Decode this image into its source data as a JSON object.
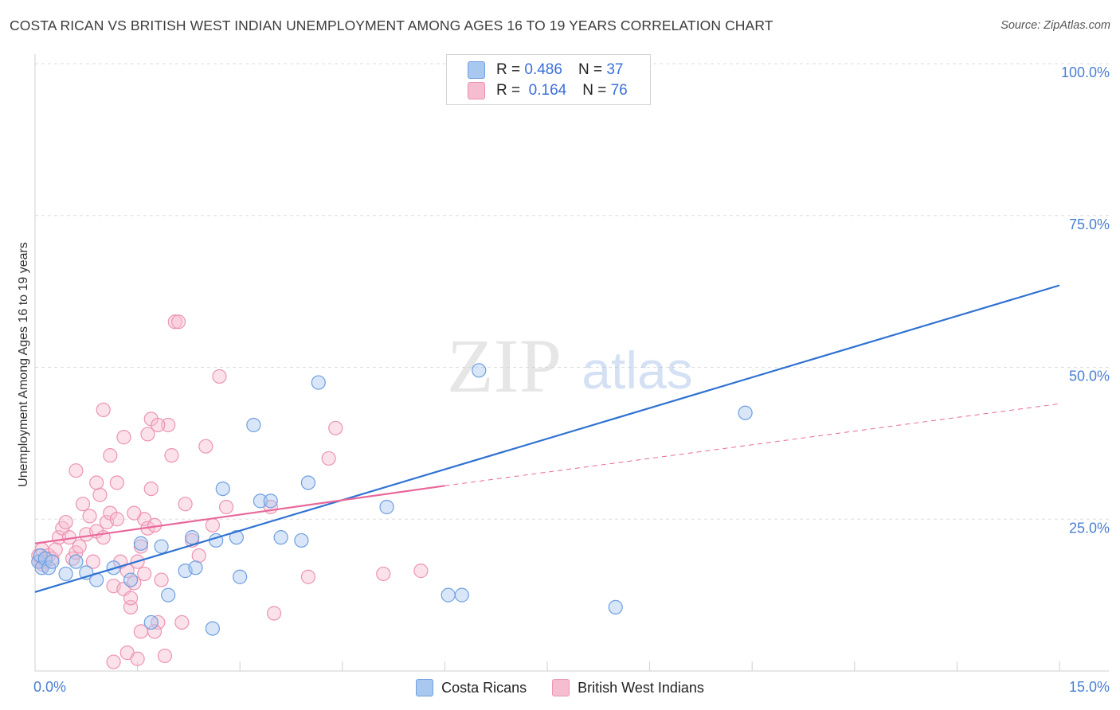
{
  "title": "COSTA RICAN VS BRITISH WEST INDIAN UNEMPLOYMENT AMONG AGES 16 TO 19 YEARS CORRELATION CHART",
  "source": "Source: ZipAtlas.com",
  "watermark": {
    "zip": "ZIP",
    "atlas": "atlas"
  },
  "legend_top": [
    {
      "r_label": "R =",
      "r_value": "0.486",
      "n_label": "N =",
      "n_value": "37"
    },
    {
      "r_label": "R =",
      "r_value": "0.164",
      "n_label": "N =",
      "n_value": "76"
    }
  ],
  "legend_bottom": [
    "Costa Ricans",
    "British West Indians"
  ],
  "colors": {
    "blue_fill": "#a9c8f0",
    "blue_stroke": "#6f9fe0",
    "blue_line": "#2f72d2",
    "pink_fill": "#f6bcd0",
    "pink_stroke": "#ec94b2",
    "pink_line": "#e8689a",
    "grid": "#dddddd",
    "tick_label": "#4a7fd0"
  },
  "chart_data": {
    "type": "scatter",
    "title": "COSTA RICAN VS BRITISH WEST INDIAN UNEMPLOYMENT AMONG AGES 16 TO 19 YEARS CORRELATION CHART",
    "xlabel": "",
    "ylabel": "Unemployment Among Ages 16 to 19 years",
    "xlim": [
      0,
      15
    ],
    "ylim": [
      0,
      100
    ],
    "x_tick_labels": [
      "0.0%",
      "15.0%"
    ],
    "y_ticks": [
      25,
      50,
      75,
      100
    ],
    "y_tick_labels": [
      "25.0%",
      "50.0%",
      "75.0%",
      "100.0%"
    ],
    "grid": true,
    "legend_position": "top-center",
    "series": [
      {
        "name": "Costa Ricans",
        "r": 0.486,
        "n": 37,
        "trend": {
          "x": [
            0,
            15
          ],
          "y": [
            13,
            63.5
          ],
          "style": "solid"
        },
        "points": [
          [
            0.05,
            18
          ],
          [
            0.08,
            19
          ],
          [
            0.1,
            17
          ],
          [
            0.15,
            18.5
          ],
          [
            0.2,
            17
          ],
          [
            0.25,
            18
          ],
          [
            0.45,
            16
          ],
          [
            0.6,
            18
          ],
          [
            0.75,
            16.2
          ],
          [
            0.9,
            15
          ],
          [
            1.15,
            17
          ],
          [
            1.4,
            15
          ],
          [
            1.55,
            21
          ],
          [
            1.7,
            8
          ],
          [
            1.85,
            20.5
          ],
          [
            1.95,
            12.5
          ],
          [
            2.2,
            16.5
          ],
          [
            2.3,
            22
          ],
          [
            2.35,
            17
          ],
          [
            2.6,
            7
          ],
          [
            2.65,
            21.5
          ],
          [
            2.75,
            30
          ],
          [
            2.95,
            22
          ],
          [
            3.0,
            15.5
          ],
          [
            3.2,
            40.5
          ],
          [
            3.3,
            28
          ],
          [
            3.45,
            28
          ],
          [
            3.6,
            22
          ],
          [
            3.9,
            21.5
          ],
          [
            4.0,
            31
          ],
          [
            4.15,
            47.5
          ],
          [
            5.15,
            27
          ],
          [
            6.05,
            12.5
          ],
          [
            6.25,
            12.5
          ],
          [
            6.5,
            49.5
          ],
          [
            8.5,
            10.5
          ],
          [
            10.4,
            42.5
          ]
        ]
      },
      {
        "name": "British West Indians",
        "r": 0.164,
        "n": 76,
        "trend": {
          "x": [
            0,
            6
          ],
          "y": [
            21,
            30.5
          ],
          "style": "solid"
        },
        "trend_extension": {
          "x": [
            6,
            15
          ],
          "y": [
            30.5,
            44
          ],
          "style": "dashed"
        },
        "points": [
          [
            0.05,
            19
          ],
          [
            0.08,
            18
          ],
          [
            0.1,
            20
          ],
          [
            0.12,
            17.5
          ],
          [
            0.15,
            18
          ],
          [
            0.2,
            19
          ],
          [
            0.25,
            18.5
          ],
          [
            0.3,
            20
          ],
          [
            0.35,
            22
          ],
          [
            0.4,
            23.5
          ],
          [
            0.45,
            24.5
          ],
          [
            0.5,
            22
          ],
          [
            0.55,
            18.5
          ],
          [
            0.6,
            19.5
          ],
          [
            0.65,
            20.5
          ],
          [
            0.7,
            27.5
          ],
          [
            0.75,
            22.5
          ],
          [
            0.8,
            25.5
          ],
          [
            0.85,
            18
          ],
          [
            0.9,
            23
          ],
          [
            0.95,
            29
          ],
          [
            1.0,
            22
          ],
          [
            1.05,
            24.5
          ],
          [
            1.1,
            26
          ],
          [
            1.15,
            14
          ],
          [
            1.2,
            25
          ],
          [
            1.25,
            18
          ],
          [
            1.3,
            13.5
          ],
          [
            1.35,
            16.5
          ],
          [
            1.4,
            10.5
          ],
          [
            1.45,
            14.5
          ],
          [
            1.5,
            18
          ],
          [
            1.55,
            20.5
          ],
          [
            1.6,
            25
          ],
          [
            1.65,
            23.5
          ],
          [
            1.7,
            30
          ],
          [
            1.75,
            24
          ],
          [
            1.8,
            8
          ],
          [
            1.85,
            15
          ],
          [
            1.9,
            2.5
          ],
          [
            1.95,
            40.5
          ],
          [
            2.0,
            35.5
          ],
          [
            2.05,
            57.5
          ],
          [
            2.1,
            57.5
          ],
          [
            2.15,
            8
          ],
          [
            2.2,
            27.5
          ],
          [
            2.3,
            21.5
          ],
          [
            2.4,
            19
          ],
          [
            2.5,
            37
          ],
          [
            2.6,
            24
          ],
          [
            2.7,
            48.5
          ],
          [
            2.8,
            27
          ],
          [
            0.6,
            33
          ],
          [
            0.9,
            31
          ],
          [
            1.0,
            43
          ],
          [
            1.1,
            35.5
          ],
          [
            1.2,
            31
          ],
          [
            1.3,
            38.5
          ],
          [
            1.35,
            3
          ],
          [
            1.4,
            12
          ],
          [
            1.45,
            26
          ],
          [
            1.5,
            2
          ],
          [
            1.55,
            6.5
          ],
          [
            1.6,
            16
          ],
          [
            1.65,
            39
          ],
          [
            1.7,
            41.5
          ],
          [
            1.75,
            6.5
          ],
          [
            1.8,
            40.5
          ],
          [
            3.45,
            27
          ],
          [
            3.5,
            9.5
          ],
          [
            4.0,
            15.5
          ],
          [
            4.3,
            35
          ],
          [
            4.4,
            40
          ],
          [
            5.1,
            16
          ],
          [
            5.65,
            16.5
          ],
          [
            1.15,
            1.5
          ]
        ]
      }
    ]
  }
}
